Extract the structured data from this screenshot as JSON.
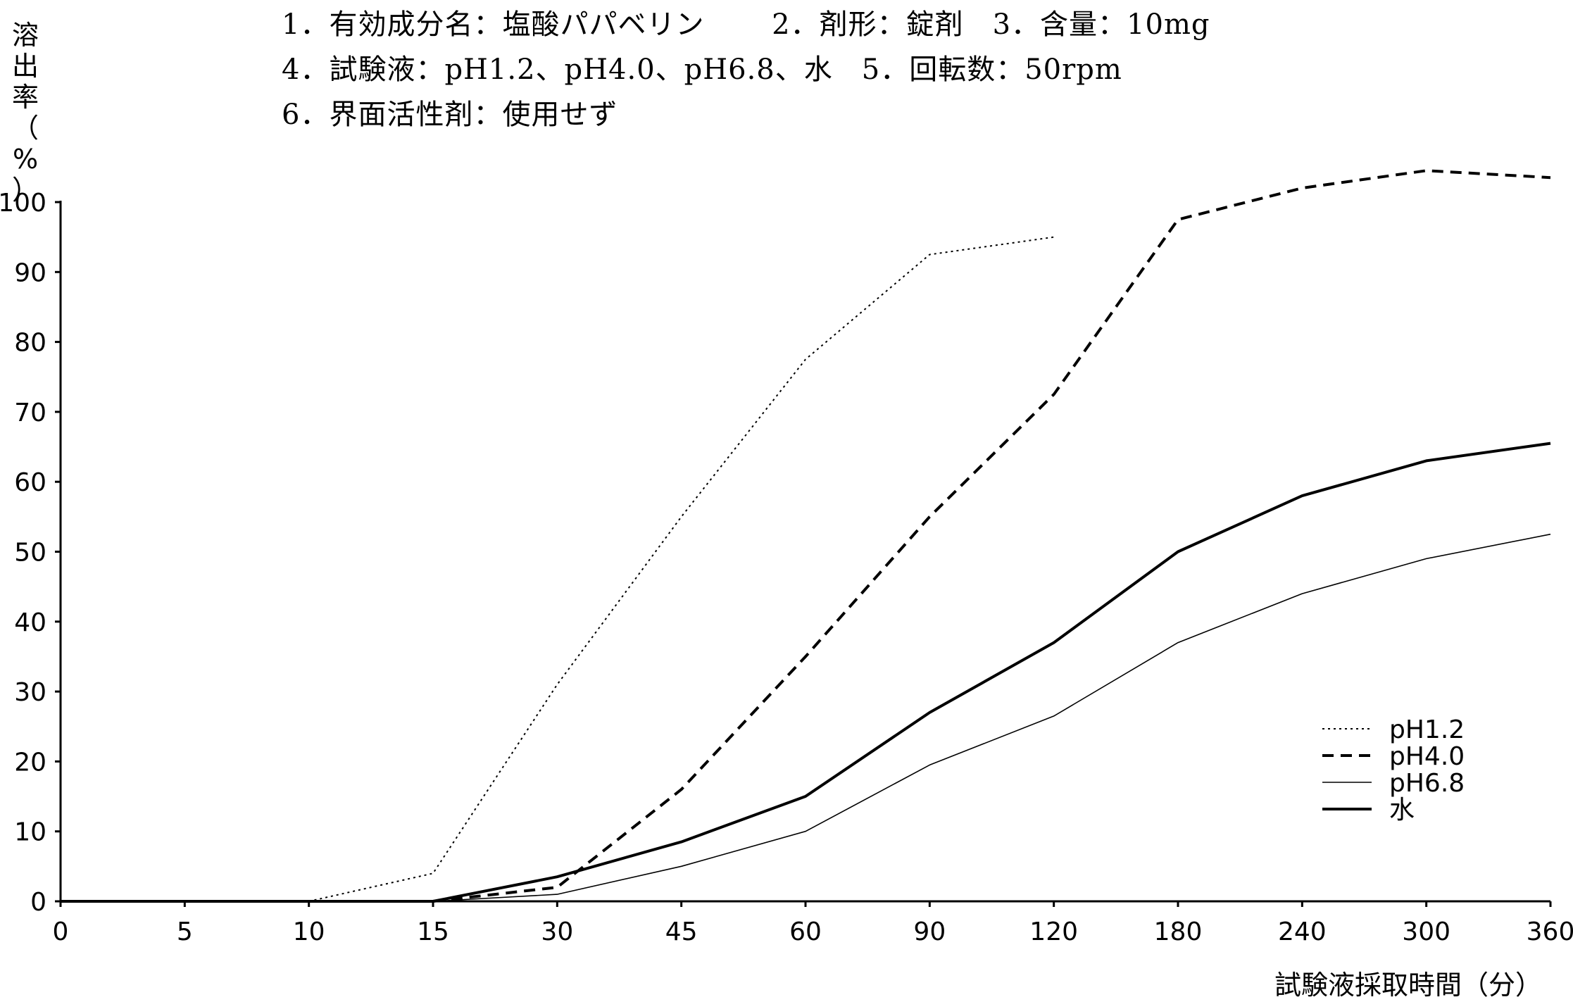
{
  "conditions": {
    "line1": "1．有効成分名：塩酸パパベリン　　 2．剤形：錠剤　3．含量：10mg",
    "line2": "4．試験液：pH1.2、pH4.0、pH6.8、水　5．回転数：50rpm",
    "line3": "6．界面活性剤：使用せず"
  },
  "axes": {
    "ylabel_chars": [
      "溶",
      "出",
      "率",
      "（",
      "%",
      "）"
    ],
    "xlabel": "試験液採取時間（分）"
  },
  "chart_data": {
    "type": "line",
    "categories": [
      "0",
      "5",
      "10",
      "15",
      "30",
      "45",
      "60",
      "90",
      "120",
      "180",
      "240",
      "300",
      "360"
    ],
    "ylim": [
      0,
      100
    ],
    "yticks": [
      0,
      10,
      20,
      30,
      40,
      50,
      60,
      70,
      80,
      90,
      100
    ],
    "xlabel": "試験液採取時間（分）",
    "ylabel": "溶出率（%）",
    "grid": false,
    "legend_position": "bottom-right",
    "series": [
      {
        "name": "pH1.2",
        "style": "dotted",
        "color": "#000000",
        "values": [
          null,
          null,
          0,
          4,
          31,
          55,
          77.5,
          92.5,
          95,
          null,
          null,
          null,
          null
        ]
      },
      {
        "name": "pH4.0",
        "style": "dashed",
        "color": "#000000",
        "values": [
          null,
          null,
          null,
          0,
          2,
          16,
          35,
          55,
          72.5,
          97.5,
          102,
          104.5,
          103.5
        ]
      },
      {
        "name": "pH6.8",
        "style": "thin",
        "color": "#000000",
        "values": [
          null,
          null,
          null,
          0,
          1,
          5,
          10,
          19.5,
          26.5,
          37,
          44,
          49,
          52.5
        ]
      },
      {
        "name": "水",
        "style": "thick",
        "color": "#000000",
        "values": [
          0,
          0,
          0,
          0,
          3.5,
          8.5,
          15,
          27,
          37,
          50,
          58,
          63,
          65.5
        ]
      }
    ]
  }
}
